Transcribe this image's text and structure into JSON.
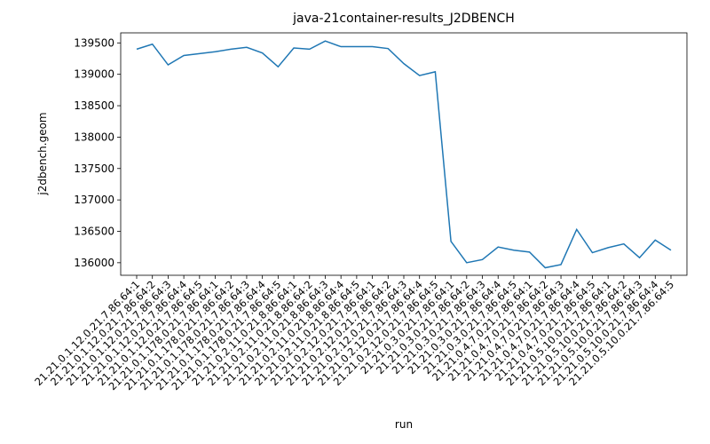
{
  "chart_data": {
    "type": "line",
    "title": "java-21container-results_J2DBENCH",
    "xlabel": "run",
    "ylabel": "j2dbench.geom",
    "ylim": [
      135800,
      139660
    ],
    "yticks": [
      136000,
      136500,
      137000,
      137500,
      138000,
      138500,
      139000,
      139500
    ],
    "grid": false,
    "line_color": "#1f77b4",
    "categories": [
      "21.21.0.1.12.0.21.7.86.64:1",
      "21.21.0.1.12.0.21.7.86.64:2",
      "21.21.0.1.12.0.21.7.86.64:3",
      "21.21.0.1.12.0.21.7.86.64:4",
      "21.21.0.1.12.0.21.7.86.64:5",
      "21.21.0.1.178.0.21.7.86.64:1",
      "21.21.0.1.178.0.21.7.86.64:2",
      "21.21.0.1.178.0.21.7.86.64:3",
      "21.21.0.1.178.0.21.7.86.64:4",
      "21.21.0.1.178.0.21.7.86.64:5",
      "21.21.0.2.11.0.21.8.86.64:1",
      "21.21.0.2.11.0.21.8.86.64:2",
      "21.21.0.2.11.0.21.8.86.64:3",
      "21.21.0.2.11.0.21.8.86.64:4",
      "21.21.0.2.11.0.21.8.86.64:5",
      "21.21.0.2.12.0.21.7.86.64:1",
      "21.21.0.2.12.0.21.7.86.64:2",
      "21.21.0.2.12.0.21.7.86.64:3",
      "21.21.0.2.12.0.21.7.86.64:4",
      "21.21.0.2.12.0.21.7.86.64:5",
      "21.21.0.3.0.21.7.86.64:1",
      "21.21.0.3.0.21.7.86.64:2",
      "21.21.0.3.0.21.7.86.64:3",
      "21.21.0.3.0.21.7.86.64:4",
      "21.21.0.3.0.21.7.86.64:5",
      "21.21.0.4.7.0.21.7.86.64:1",
      "21.21.0.4.7.0.21.7.86.64:2",
      "21.21.0.4.7.0.21.7.86.64:3",
      "21.21.0.4.7.0.21.7.86.64:4",
      "21.21.0.4.7.0.21.7.86.64:5",
      "21.21.0.5.10.0.21.7.86.64:1",
      "21.21.0.5.10.0.21.7.86.64:2",
      "21.21.0.5.10.0.21.7.86.64:3",
      "21.21.0.5.10.0.21.7.86.64:4",
      "21.21.0.5.10.0.21.7.86.64:5"
    ],
    "series": [
      {
        "values": [
          139400,
          139480,
          139150,
          139300,
          139330,
          139360,
          139400,
          139430,
          139340,
          139120,
          139420,
          139400,
          139530,
          139440,
          139440,
          139440,
          139410,
          139170,
          138980,
          139040,
          136340,
          136000,
          136050,
          136250,
          136200,
          136170,
          135920,
          135970,
          136530,
          136160,
          136240,
          136300,
          136080,
          136360,
          136200
        ]
      }
    ]
  }
}
